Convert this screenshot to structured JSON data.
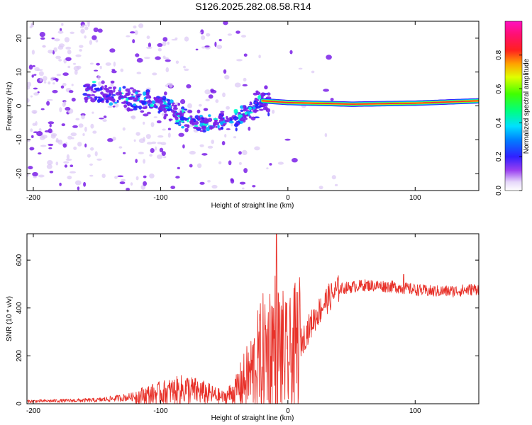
{
  "title": "S126.2025.282.08.58.R14",
  "colors": {
    "snr_line": "#e8322a",
    "spectro_low": "#dcc8f5",
    "spectro_mid": "#7a1ee8",
    "spectro_ridge": "#ff2030"
  },
  "chart_data": [
    {
      "type": "heatmap",
      "name": "spectrogram",
      "xlabel": "Height of straight line (km)",
      "ylabel": "Frequency (Hz)",
      "xlim": [
        -205,
        150
      ],
      "ylim": [
        -25,
        25
      ],
      "x_ticks": [
        -200,
        -100,
        0,
        100
      ],
      "y_ticks": [
        -20,
        -10,
        0,
        10,
        20
      ],
      "x_tick_labels": [
        "-200",
        "-100",
        "0",
        "100"
      ],
      "y_tick_labels": [
        "-20",
        "-10",
        "0",
        "10",
        "20"
      ],
      "ridge": [
        {
          "x": -205,
          "f": 3.0
        },
        {
          "x": -160,
          "f": 4.0
        },
        {
          "x": -140,
          "f": 3.0
        },
        {
          "x": -120,
          "f": 2.0
        },
        {
          "x": -100,
          "f": 1.0
        },
        {
          "x": -80,
          "f": -4.0
        },
        {
          "x": -60,
          "f": -5.0
        },
        {
          "x": -45,
          "f": -4.0
        },
        {
          "x": -30,
          "f": -1.5
        },
        {
          "x": -20,
          "f": 1.5
        },
        {
          "x": 0,
          "f": 1.0
        },
        {
          "x": 50,
          "f": 0.5
        },
        {
          "x": 100,
          "f": 0.8
        },
        {
          "x": 150,
          "f": 1.5
        }
      ],
      "colorbar": {
        "label": "Normalized spectral amplitude",
        "range": [
          0,
          1
        ],
        "ticks": [
          0.0,
          0.2,
          0.4,
          0.6,
          0.8
        ],
        "tick_labels": [
          "0.0",
          "0.2",
          "0.4",
          "0.6",
          "0.8"
        ]
      }
    },
    {
      "type": "line",
      "name": "snr",
      "xlabel": "Height of straight line (km)",
      "ylabel": "SNR (10 * v/v)",
      "xlim": [
        -205,
        150
      ],
      "ylim": [
        0,
        710
      ],
      "x_ticks": [
        -200,
        -100,
        0,
        100
      ],
      "y_ticks": [
        0,
        200,
        400,
        600
      ],
      "x_tick_labels": [
        "-200",
        "-100",
        "0",
        "100"
      ],
      "y_tick_labels": [
        "0",
        "200",
        "400",
        "600"
      ],
      "envelope": [
        {
          "x": -205,
          "y": 10
        },
        {
          "x": -150,
          "y": 15
        },
        {
          "x": -120,
          "y": 30
        },
        {
          "x": -100,
          "y": 45
        },
        {
          "x": -80,
          "y": 60
        },
        {
          "x": -65,
          "y": 45
        },
        {
          "x": -50,
          "y": 25
        },
        {
          "x": -40,
          "y": 60
        },
        {
          "x": -30,
          "y": 120
        },
        {
          "x": -20,
          "y": 200
        },
        {
          "x": -10,
          "y": 250
        },
        {
          "x": 0,
          "y": 180
        },
        {
          "x": 10,
          "y": 250
        },
        {
          "x": 20,
          "y": 350
        },
        {
          "x": 30,
          "y": 430
        },
        {
          "x": 40,
          "y": 480
        },
        {
          "x": 60,
          "y": 495
        },
        {
          "x": 80,
          "y": 490
        },
        {
          "x": 95,
          "y": 480
        },
        {
          "x": 110,
          "y": 470
        },
        {
          "x": 130,
          "y": 470
        },
        {
          "x": 150,
          "y": 480
        }
      ],
      "peaks": [
        {
          "x": -9,
          "y": 710
        },
        {
          "x": 91,
          "y": 540
        }
      ]
    }
  ]
}
